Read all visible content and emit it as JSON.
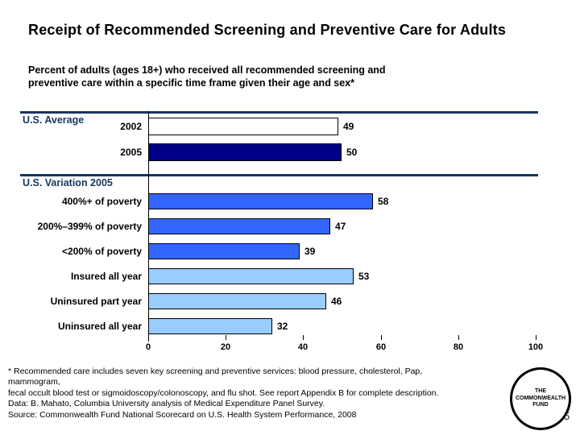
{
  "slide": {
    "title": "Receipt of Recommended Screening and Preventive Care for Adults",
    "subtitle": "Percent of adults (ages 18+) who received all recommended screening and preventive care within a specific time frame given their age and sex*",
    "footnotes": [
      "* Recommended care includes seven key screening and preventive services: blood pressure, cholesterol, Pap,",
      "mammogram,",
      "fecal occult blood test or sigmoidoscopy/colonoscopy, and flu shot. See report Appendix B for complete description.",
      "Data: B. Mahato, Columbia University analysis of Medical Expenditure Panel Survey.",
      "Source: Commonwealth Fund National Scorecard on U.S. Health System Performance, 2008"
    ],
    "logo": {
      "line1": "THE",
      "line2": "COMMONWEALTH",
      "line3": "FUND"
    },
    "page_number": "5",
    "colors": {
      "accent_navy": "#17375E",
      "bar_navy": "#000087",
      "bar_medium_blue": "#3366FF",
      "bar_light_blue": "#99CCFF",
      "bar_outline": "#000000"
    }
  },
  "chart_data": {
    "type": "bar",
    "orientation": "horizontal",
    "title": "Receipt of Recommended Screening and Preventive Care for Adults",
    "xlim": [
      0,
      100
    ],
    "x_ticks": [
      0,
      20,
      40,
      60,
      80,
      100
    ],
    "grid": false,
    "legend": false,
    "sections": [
      {
        "label": "U.S. Average",
        "rows": [
          {
            "label": "2002",
            "value": 49,
            "color": "#FFFFFF"
          },
          {
            "label": "2005",
            "value": 50,
            "color": "#000087"
          }
        ]
      },
      {
        "label": "U.S. Variation 2005",
        "rows": [
          {
            "label": "400%+ of poverty",
            "value": 58,
            "color": "#3366FF"
          },
          {
            "label": "200%–399% of poverty",
            "value": 47,
            "color": "#3366FF"
          },
          {
            "label": "<200% of poverty",
            "value": 39,
            "color": "#3366FF"
          },
          {
            "label": "Insured all year",
            "value": 53,
            "color": "#99CCFF"
          },
          {
            "label": "Uninsured part year",
            "value": 46,
            "color": "#99CCFF"
          },
          {
            "label": "Uninsured all year",
            "value": 32,
            "color": "#99CCFF"
          }
        ]
      }
    ]
  }
}
